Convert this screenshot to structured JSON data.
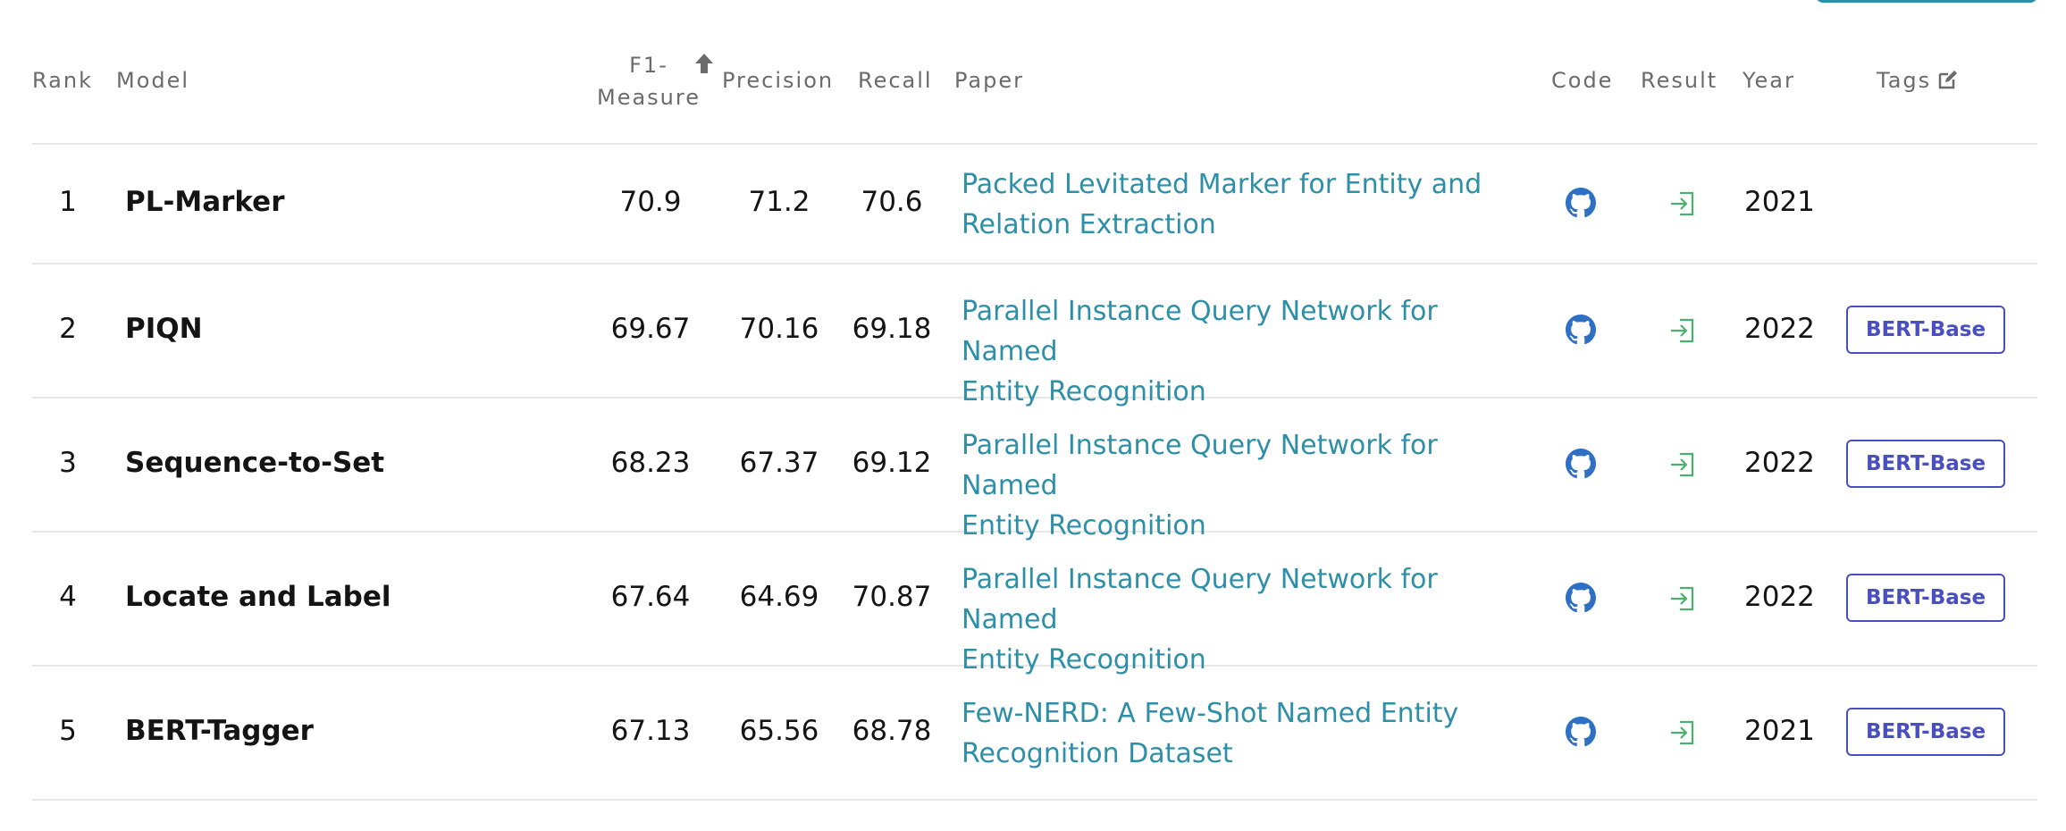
{
  "table": {
    "headers": {
      "rank": "Rank",
      "model": "Model",
      "f1_line1": "F1-",
      "f1_line2": "Measure",
      "precision": "Precision",
      "recall": "Recall",
      "paper": "Paper",
      "code": "Code",
      "result": "Result",
      "year": "Year",
      "tags": "Tags"
    },
    "sort_column": "F1-Measure",
    "rows": [
      {
        "rank": "1",
        "model": "PL-Marker",
        "f1": "70.9",
        "precision": "71.2",
        "recall": "70.6",
        "paper_line1": "Packed Levitated Marker for Entity and",
        "paper_line2": "Relation Extraction",
        "year": "2021",
        "tag": ""
      },
      {
        "rank": "2",
        "model": "PIQN",
        "f1": "69.67",
        "precision": "70.16",
        "recall": "69.18",
        "paper_line1": "Parallel Instance Query Network for Named",
        "paper_line2": "Entity Recognition",
        "year": "2022",
        "tag": "BERT-Base"
      },
      {
        "rank": "3",
        "model": "Sequence-to-Set",
        "f1": "68.23",
        "precision": "67.37",
        "recall": "69.12",
        "paper_line1": "Parallel Instance Query Network for Named",
        "paper_line2": "Entity Recognition",
        "year": "2022",
        "tag": "BERT-Base"
      },
      {
        "rank": "4",
        "model": "Locate and Label",
        "f1": "67.64",
        "precision": "64.69",
        "recall": "70.87",
        "paper_line1": "Parallel Instance Query Network for Named",
        "paper_line2": "Entity Recognition",
        "year": "2022",
        "tag": "BERT-Base"
      },
      {
        "rank": "5",
        "model": "BERT-Tagger",
        "f1": "67.13",
        "precision": "65.56",
        "recall": "68.78",
        "paper_line1": "Few-NERD: A Few-Shot Named Entity",
        "paper_line2": "Recognition Dataset",
        "year": "2021",
        "tag": "BERT-Base"
      }
    ],
    "icons": {
      "sort": "arrow-up-icon",
      "edit": "edit-icon",
      "code": "github-icon",
      "result": "sign-in-icon"
    },
    "colors": {
      "link": "#2e8fa8",
      "tag": "#4a4fbf",
      "github": "#2f6fc4",
      "result": "#4caf6e"
    }
  }
}
